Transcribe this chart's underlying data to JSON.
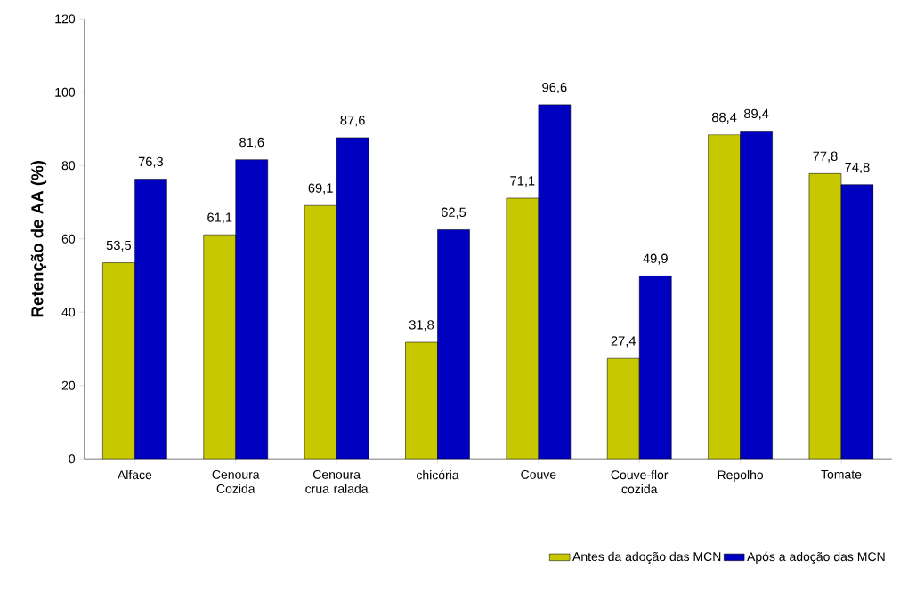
{
  "chart_data": {
    "type": "bar",
    "ylabel": "Retenção de AA (%)",
    "categories": [
      "Alface",
      "Cenoura Cozida",
      "Cenoura crua ralada",
      "chicória",
      "Couve",
      "Couve-flor cozida",
      "Repolho",
      "Tomate"
    ],
    "series": [
      {
        "name": "Antes da adoção das MCN",
        "color": "#c8c800",
        "values": [
          53.5,
          61.1,
          69.1,
          31.8,
          71.1,
          27.4,
          88.4,
          77.8
        ],
        "value_labels": [
          "53,5",
          "61,1",
          "69,1",
          "31,8",
          "71,1",
          "27,4",
          "88,4",
          "77,8"
        ]
      },
      {
        "name": "Após a adoção das MCN",
        "color": "#0000c0",
        "values": [
          76.3,
          81.6,
          87.6,
          62.5,
          96.6,
          49.9,
          89.4,
          74.8
        ],
        "value_labels": [
          "76,3",
          "81,6",
          "87,6",
          "62,5",
          "96,6",
          "49,9",
          "89,4",
          "74,8"
        ]
      }
    ],
    "ylim": [
      0,
      120
    ],
    "yticks": [
      0,
      20,
      40,
      60,
      80,
      100,
      120
    ],
    "grid": false,
    "legend": "bottom right"
  }
}
